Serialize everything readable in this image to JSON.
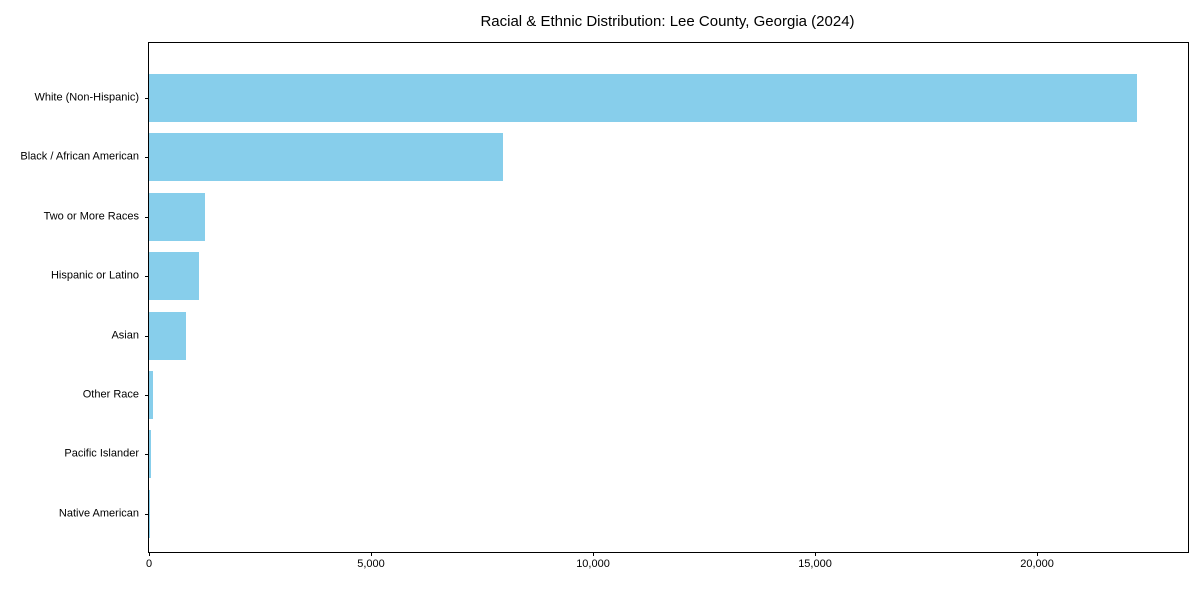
{
  "title": "Racial & Ethnic Distribution: Lee County, Georgia (2024)",
  "chart_data": {
    "type": "bar",
    "orientation": "horizontal",
    "title": "Racial & Ethnic Distribution: Lee County, Georgia (2024)",
    "categories": [
      "White (Non-Hispanic)",
      "Black / African American",
      "Two or More Races",
      "Hispanic or Latino",
      "Asian",
      "Other Race",
      "Pacific Islander",
      "Native American"
    ],
    "values": [
      22250,
      7970,
      1250,
      1130,
      835,
      80,
      45,
      10
    ],
    "xlabel": "",
    "ylabel": "",
    "xlim": [
      0,
      23400
    ],
    "xticks": [
      0,
      5000,
      10000,
      15000,
      20000
    ],
    "xtick_labels": [
      "0",
      "5,000",
      "10,000",
      "15,000",
      "20,000"
    ],
    "bar_color": "#87CEEB",
    "axis_color": "#000000",
    "text_color": "#000000",
    "grid": false,
    "legend": null,
    "data_labels": false
  }
}
